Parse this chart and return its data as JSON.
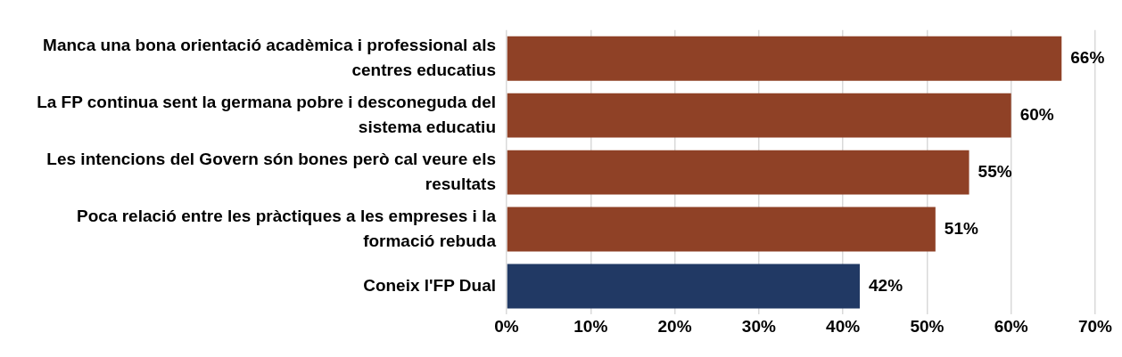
{
  "chart_data": {
    "type": "bar",
    "orientation": "horizontal",
    "categories": [
      "Manca una bona orientació acadèmica i professional als centres educatius",
      "La FP continua sent la germana pobre i desconeguda del sistema educatiu",
      "Les intencions del Govern són bones però cal veure els resultats",
      "Poca relació entre les pràctiques a les empreses i la formació rebuda",
      "Coneix l'FP Dual"
    ],
    "values": [
      66,
      60,
      55,
      51,
      42
    ],
    "colors": [
      "#8f4126",
      "#8f4126",
      "#8f4126",
      "#8f4126",
      "#213964"
    ],
    "value_labels": [
      "66%",
      "60%",
      "55%",
      "51%",
      "42%"
    ],
    "xlim": [
      0,
      70
    ],
    "xticks": [
      {
        "value": 0,
        "label": "0%"
      },
      {
        "value": 10,
        "label": "10%"
      },
      {
        "value": 20,
        "label": "20%"
      },
      {
        "value": 30,
        "label": "30%"
      },
      {
        "value": 40,
        "label": "40%"
      },
      {
        "value": 50,
        "label": "50%"
      },
      {
        "value": 60,
        "label": "60%"
      },
      {
        "value": 70,
        "label": "70%"
      }
    ],
    "grid": "x",
    "legend": false
  }
}
